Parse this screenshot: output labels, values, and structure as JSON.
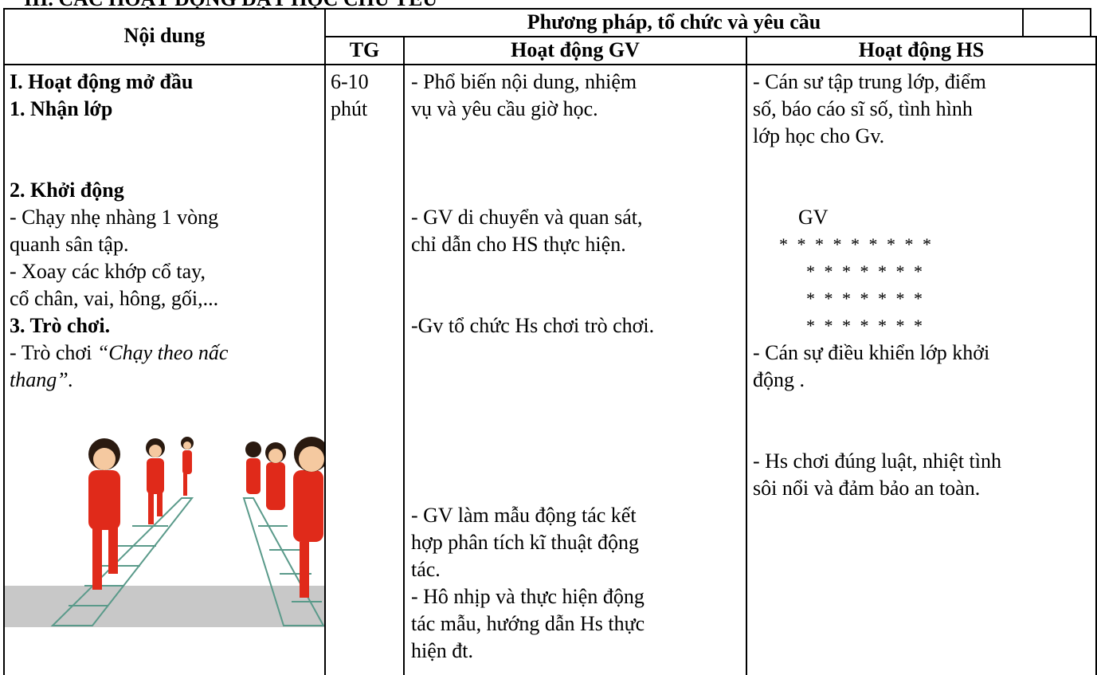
{
  "title": "III. CÁC HOẠT ĐỘNG DẠY HỌC CHỦ YẾU",
  "table": {
    "header": {
      "content": "Nội dung",
      "methods": "Phương pháp, tổ chức và yêu cầu",
      "time": "TG",
      "teacher": "Hoạt động GV",
      "student": "Hoạt động HS"
    },
    "row": {
      "content": [
        "I. Hoạt động mở đầu",
        "1. Nhận lớp",
        "2. Khởi động",
        "- Chạy nhẹ nhàng 1 vòng",
        "quanh sân tập.",
        "- Xoay các khớp cổ tay,",
        "cổ chân, vai, hông, gối,...",
        "3. Trò chơi.",
        {
          "text": "- Trò chơi ",
          "emphasis": "“Chạy theo nấc"
        },
        "thang”."
      ],
      "time": [
        "6-10",
        "phút"
      ],
      "teacher": [
        "- Phổ biến nội dung, nhiệm",
        "vụ và yêu cầu giờ học.",
        "- GV di chuyển và quan sát,",
        "chỉ dẫn cho HS thực hiện.",
        "-Gv tổ chức Hs chơi trò chơi.",
        "- GV làm mẫu động tác kết",
        "hợp phân tích kĩ thuật động",
        "tác.",
        "- Hô nhịp và thực hiện động",
        "tác mẫu, hướng dẫn Hs thực",
        "hiện đt."
      ],
      "student": {
        "lines": [
          "- Cán sư tập trung lớp, điểm",
          "số, báo cáo sĩ số, tình hình",
          "lớp học cho Gv.",
          "- Cán sự điều khiển lớp khởi",
          "động .",
          "- Hs chơi đúng luật, nhiệt tình",
          "sôi nổi và đảm bảo an toàn."
        ],
        "formation": {
          "leader": "GV",
          "rows": [
            "* * * * * * * * *",
            "* * * * * * *",
            "* * * * * * *",
            "* * * * * * *"
          ]
        }
      }
    }
  }
}
